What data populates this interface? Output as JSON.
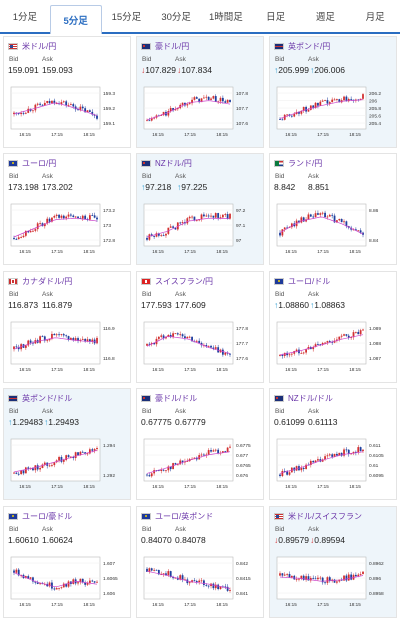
{
  "tabs": [
    {
      "label": "1分足",
      "active": false
    },
    {
      "label": "5分足",
      "active": true
    },
    {
      "label": "15分足",
      "active": false
    },
    {
      "label": "30分足",
      "active": false
    },
    {
      "label": "1時間足",
      "active": false
    },
    {
      "label": "日足",
      "active": false
    },
    {
      "label": "週足",
      "active": false
    },
    {
      "label": "月足",
      "active": false
    }
  ],
  "labels": {
    "bid": "Bid",
    "ask": "Ask"
  },
  "colors": {
    "accent": "#2a6dc1",
    "up_arrow": "#2a9ad0",
    "down_arrow": "#d23030",
    "candle_up": "#d23030",
    "candle_down": "#1e3f9e",
    "ma_line": "#cc44cc"
  },
  "cards": [
    {
      "pair": "米ドル/円",
      "flag": "us",
      "bid": "159.091",
      "ask": "159.093",
      "dir": "",
      "ticks": [
        "159.3",
        "159.2",
        "159.1"
      ],
      "xlabels": [
        "16:15",
        "17:15",
        "18:15"
      ],
      "trend": [
        0.35,
        0.55,
        0.75,
        0.55,
        0.3
      ],
      "highlight": false
    },
    {
      "pair": "豪ドル/円",
      "flag": "au",
      "bid": "107.829",
      "ask": "107.834",
      "dir": "down",
      "ticks": [
        "107.8",
        "107.7",
        "107.6"
      ],
      "xlabels": [
        "16:15",
        "17:15",
        "18:15"
      ],
      "trend": [
        0.15,
        0.4,
        0.75,
        0.82,
        0.7
      ],
      "highlight": true
    },
    {
      "pair": "英ポンド/円",
      "flag": "gb",
      "bid": "205.999",
      "ask": "206.006",
      "dir": "up",
      "ticks": [
        "206.2",
        "206",
        "205.8",
        "205.6",
        "205.4"
      ],
      "xlabels": [
        "16:15",
        "17:15",
        "18:15"
      ],
      "trend": [
        0.2,
        0.45,
        0.65,
        0.8,
        0.85
      ],
      "highlight": true
    },
    {
      "pair": "ユーロ/円",
      "flag": "eu",
      "bid": "173.198",
      "ask": "173.202",
      "dir": "",
      "ticks": [
        "173.2",
        "173",
        "172.8"
      ],
      "xlabels": [
        "16:15",
        "17:15",
        "18:15"
      ],
      "trend": [
        0.15,
        0.45,
        0.75,
        0.8,
        0.7
      ],
      "highlight": false
    },
    {
      "pair": "NZドル/円",
      "flag": "nz",
      "bid": "97.218",
      "ask": "97.225",
      "dir": "up",
      "ticks": [
        "97.2",
        "97.1",
        "97"
      ],
      "xlabels": [
        "16:15",
        "17:15",
        "18:15"
      ],
      "trend": [
        0.15,
        0.35,
        0.7,
        0.8,
        0.78
      ],
      "highlight": true
    },
    {
      "pair": "ランド/円",
      "flag": "za",
      "bid": "8.842",
      "ask": "8.851",
      "dir": "",
      "ticks": [
        "8.86",
        "8.84"
      ],
      "xlabels": [
        "16:15",
        "17:15",
        "18:15"
      ],
      "trend": [
        0.3,
        0.7,
        0.85,
        0.6,
        0.25
      ],
      "highlight": false
    },
    {
      "pair": "カナダドル/円",
      "flag": "ca",
      "bid": "116.873",
      "ask": "116.879",
      "dir": "",
      "ticks": [
        "116.9",
        "116.8"
      ],
      "xlabels": [
        "16:15",
        "17:15",
        "18:15"
      ],
      "trend": [
        0.35,
        0.6,
        0.75,
        0.65,
        0.6
      ],
      "highlight": false
    },
    {
      "pair": "スイスフラン/円",
      "flag": "ch",
      "bid": "177.593",
      "ask": "177.609",
      "dir": "",
      "ticks": [
        "177.8",
        "177.7",
        "177.6"
      ],
      "xlabels": [
        "16:15",
        "17:15",
        "18:15"
      ],
      "trend": [
        0.45,
        0.8,
        0.7,
        0.4,
        0.2
      ],
      "highlight": false
    },
    {
      "pair": "ユーロ/ドル",
      "flag": "eu",
      "bid": "1.08860",
      "ask": "1.08863",
      "dir": "up",
      "ticks": [
        "1.089",
        "1.088",
        "1.087"
      ],
      "xlabels": [
        "16:15",
        "17:15",
        "18:15"
      ],
      "trend": [
        0.15,
        0.3,
        0.5,
        0.7,
        0.85
      ],
      "highlight": false
    },
    {
      "pair": "英ポンド/ドル",
      "flag": "gb",
      "bid": "1.29483",
      "ask": "1.29493",
      "dir": "up",
      "ticks": [
        "1.294",
        "1.292"
      ],
      "xlabels": [
        "16:15",
        "17:15",
        "18:15"
      ],
      "trend": [
        0.15,
        0.3,
        0.5,
        0.7,
        0.9
      ],
      "highlight": true
    },
    {
      "pair": "豪ドル/ドル",
      "flag": "au",
      "bid": "0.67775",
      "ask": "0.67779",
      "dir": "",
      "ticks": [
        "0.6775",
        "0.677",
        "0.6765",
        "0.676"
      ],
      "xlabels": [
        "16:15",
        "17:15",
        "18:15"
      ],
      "trend": [
        0.1,
        0.3,
        0.55,
        0.75,
        0.85
      ],
      "highlight": false
    },
    {
      "pair": "NZドル/ドル",
      "flag": "nz",
      "bid": "0.61099",
      "ask": "0.61113",
      "dir": "",
      "ticks": [
        "0.611",
        "0.6105",
        "0.61",
        "0.6095"
      ],
      "xlabels": [
        "16:15",
        "17:15",
        "18:15"
      ],
      "trend": [
        0.1,
        0.3,
        0.55,
        0.75,
        0.85
      ],
      "highlight": false
    },
    {
      "pair": "ユーロ/豪ドル",
      "flag": "eu",
      "bid": "1.60610",
      "ask": "1.60624",
      "dir": "",
      "ticks": [
        "1.607",
        "1.6065",
        "1.606"
      ],
      "xlabels": [
        "16:15",
        "17:15",
        "18:15"
      ],
      "trend": [
        0.75,
        0.45,
        0.25,
        0.45,
        0.35
      ],
      "highlight": false
    },
    {
      "pair": "ユーロ/英ポンド",
      "flag": "eu",
      "bid": "0.84070",
      "ask": "0.84078",
      "dir": "",
      "ticks": [
        "0.842",
        "0.8415",
        "0.841"
      ],
      "xlabels": [
        "16:15",
        "17:15",
        "18:15"
      ],
      "trend": [
        0.8,
        0.65,
        0.45,
        0.35,
        0.2
      ],
      "highlight": false
    },
    {
      "pair": "米ドル/スイスフラン",
      "flag": "us",
      "bid": "0.89579",
      "ask": "0.89594",
      "dir": "down",
      "ticks": [
        "0.8962",
        "0.896",
        "0.8958"
      ],
      "xlabels": [
        "16:15",
        "17:15",
        "18:15"
      ],
      "trend": [
        0.6,
        0.55,
        0.45,
        0.5,
        0.65
      ],
      "highlight": true
    }
  ]
}
